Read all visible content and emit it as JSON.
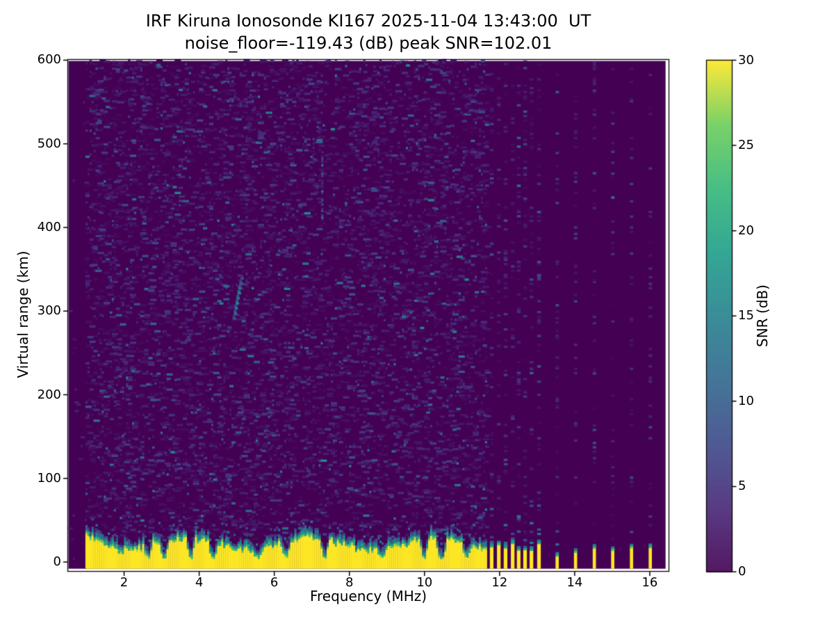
{
  "chart_data": {
    "type": "heatmap",
    "title": "IRF Kiruna Ionosonde KI167 2025-11-04 13:43:00  UT",
    "subtitle": "noise_floor=-119.43 (dB) peak SNR=102.01",
    "station": "IRF Kiruna Ionosonde KI167",
    "datetime_ut": "2025-11-04 13:43:00",
    "noise_floor_db": -119.43,
    "peak_snr_db": 102.01,
    "xlabel": "Frequency (MHz)",
    "ylabel": "Virtual range (km)",
    "xlim": [
      0.5,
      16.51
    ],
    "ylim": [
      -11.2,
      600.8
    ],
    "xticks": [
      2,
      4,
      6,
      8,
      10,
      12,
      14,
      16
    ],
    "yticks": [
      0,
      100,
      200,
      300,
      400,
      500,
      600
    ],
    "colorbar": {
      "label": "SNR (dB)",
      "min": 0,
      "max": 30,
      "ticks": [
        0,
        5,
        10,
        15,
        20,
        25,
        30
      ],
      "colormap": "viridis"
    },
    "data_extent": {
      "f_min": 0.52,
      "f_max": 16.42,
      "r_min": -8,
      "r_max": 599
    },
    "sounding": {
      "continuous_sweep_mhz": [
        0.97,
        11.63
      ],
      "stepped_dense_mhz": [
        11.74,
        11.93,
        12.11,
        12.3,
        12.46,
        12.63,
        12.8,
        13.0
      ],
      "stepped_sparse_mhz": [
        13.49,
        13.98,
        14.48,
        14.97,
        15.47,
        15.97
      ]
    },
    "ground_clutter": {
      "mean_top_km": 24,
      "jitter_km": 9,
      "low_freq_boost_km": 12,
      "transition_km": 12,
      "notch_freqs_mhz": [
        2.62,
        3.06,
        3.73,
        4.35,
        5.52,
        6.28,
        7.31,
        8.83,
        9.95,
        10.42,
        11.12
      ]
    },
    "echo_trace": {
      "points": [
        {
          "f": 4.89,
          "r": 290,
          "snr": 9
        },
        {
          "f": 4.92,
          "r": 296,
          "snr": 12
        },
        {
          "f": 4.94,
          "r": 302,
          "snr": 14
        },
        {
          "f": 4.97,
          "r": 308,
          "snr": 15
        },
        {
          "f": 4.99,
          "r": 314,
          "snr": 13
        },
        {
          "f": 5.02,
          "r": 320,
          "snr": 15
        },
        {
          "f": 5.04,
          "r": 326,
          "snr": 12
        },
        {
          "f": 5.07,
          "r": 332,
          "snr": 10
        },
        {
          "f": 5.1,
          "r": 338,
          "snr": 8
        }
      ]
    },
    "interference_streaks": [
      {
        "f": 7.25,
        "r_min": 408,
        "r_max": 492
      }
    ],
    "dark_dash": {
      "f": 5.18,
      "width_mhz": 0.37,
      "r": 28,
      "color": "#380c44"
    },
    "noise_speckle": {
      "coverage": 0.3,
      "mean_snr_db": 2.2,
      "bright_fraction": 0.012
    },
    "background_color": "#440154",
    "peak_color": "#fde725",
    "viridis_stops": [
      [
        0.0,
        "#440154"
      ],
      [
        0.125,
        "#482878"
      ],
      [
        0.25,
        "#3e4a89"
      ],
      [
        0.375,
        "#31688e"
      ],
      [
        0.5,
        "#26828e"
      ],
      [
        0.625,
        "#1f9e89"
      ],
      [
        0.75,
        "#35b779"
      ],
      [
        0.875,
        "#6dcd59"
      ],
      [
        1.0,
        "#fde725"
      ]
    ],
    "seed": 42
  }
}
